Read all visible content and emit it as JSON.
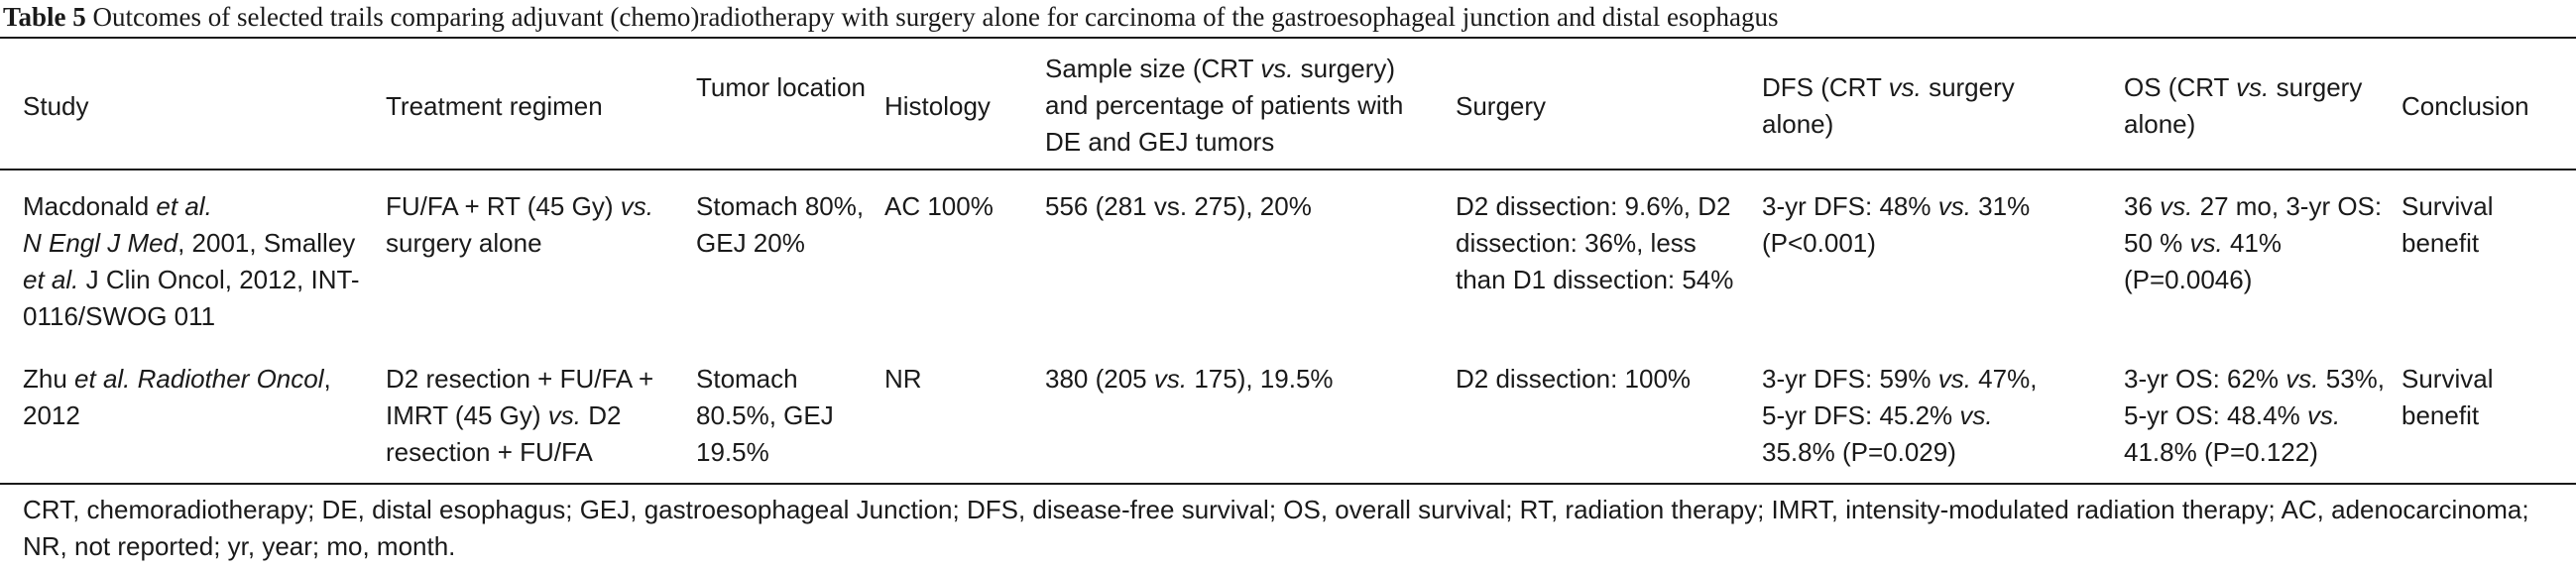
{
  "caption": {
    "label": "Table 5",
    "text": "Outcomes of selected trails comparing adjuvant (chemo)radiotherapy with surgery alone for carcinoma of the gastroesophageal junction and distal esophagus"
  },
  "headers": {
    "study": "Study",
    "regimen": "Treatment regimen",
    "location": "Tumor location",
    "histology": "Histology",
    "sample_a": "Sample size (CRT ",
    "sample_vs": "vs.",
    "sample_b": " surgery) and percentage of patients with DE and GEJ tumors",
    "surgery": "Surgery",
    "dfs_a": "DFS (CRT ",
    "dfs_vs": "vs.",
    "dfs_b": " surgery alone)",
    "os_a": "OS (CRT ",
    "os_vs": "vs.",
    "os_b": " surgery alone)",
    "conclusion": "Conclusion"
  },
  "rows": [
    {
      "study": {
        "p1": "Macdonald ",
        "p2": "et al.",
        "p3": "N Engl J Med",
        "p4": ", 2001, Smalley ",
        "p5": "et al.",
        "p6": " J Clin Oncol, 2012, INT-0116/SWOG 011"
      },
      "regimen": {
        "p1": "FU/FA + RT (45 Gy) ",
        "p2": "vs.",
        "p3": " surgery alone"
      },
      "location": "Stomach 80%, GEJ 20%",
      "histology": "AC 100%",
      "sample": "556 (281 vs. 275), 20%",
      "surgery": "D2 dissection: 9.6%, D2 dissection: 36%, less than D1 dissection: 54%",
      "dfs": {
        "p1": "3-yr DFS: 48% ",
        "p2": "vs.",
        "p3": " 31% (P<0.001)"
      },
      "os": {
        "p1": "36 ",
        "p2": "vs.",
        "p3": " 27 mo, 3-yr OS: 50 % ",
        "p4": "vs.",
        "p5": " 41% (P=0.0046)"
      },
      "conclusion": "Survival benefit"
    },
    {
      "study": {
        "p1": "Zhu ",
        "p2": "et al. Radiother Oncol",
        "p3": ", 2012"
      },
      "regimen": {
        "p1": "D2 resection + FU/FA + IMRT (45 Gy) ",
        "p2": "vs.",
        "p3": " D2 resection + FU/FA"
      },
      "location": "Stomach 80.5%, GEJ 19.5%",
      "histology": "NR",
      "sample": {
        "p1": "380 (205 ",
        "p2": "vs.",
        "p3": " 175), 19.5%"
      },
      "surgery": "D2 dissection: 100%",
      "dfs": {
        "p1": "3-yr DFS: 59% ",
        "p2": "vs.",
        "p3": " 47%, 5-yr DFS: 45.2% ",
        "p4": "vs.",
        "p5": " 35.8% (P=0.029)"
      },
      "os": {
        "p1": "3-yr OS: 62% ",
        "p2": "vs.",
        "p3": " 53%, 5-yr OS: 48.4% ",
        "p4": "vs.",
        "p5": " 41.8% (P=0.122)"
      },
      "conclusion": "Survival benefit"
    }
  ],
  "footnote": "CRT, chemoradiotherapy; DE, distal esophagus; GEJ, gastroesophageal Junction; DFS, disease-free survival; OS, overall survival; RT, radiation therapy; IMRT, intensity-modulated radiation therapy; AC, adenocarcinoma; NR, not reported; yr, year; mo, month."
}
